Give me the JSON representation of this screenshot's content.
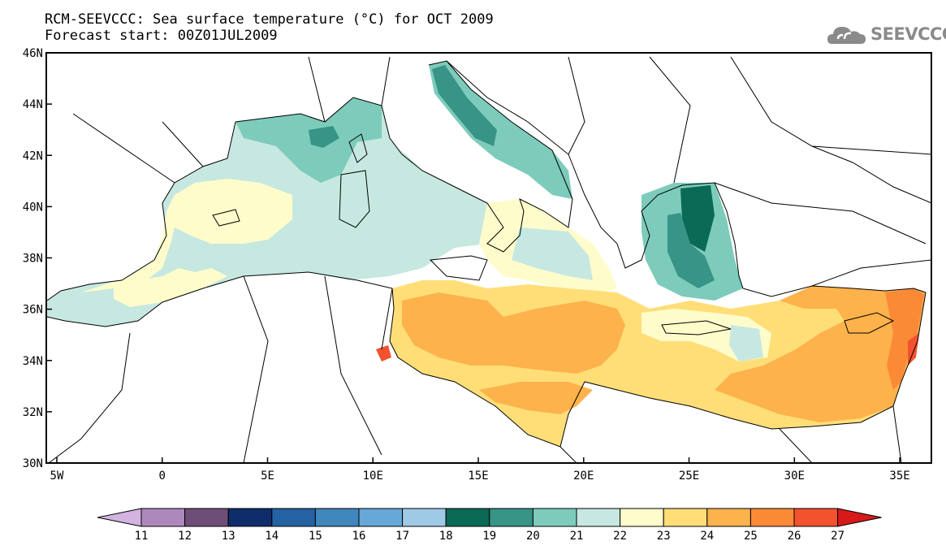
{
  "title_line1": "RCM-SEEVCCC: Sea surface temperature (°C) for OCT 2009",
  "title_line2": "Forecast start: 00Z01JUL2009",
  "logo_text": "SEEVCCC",
  "map": {
    "lat_ticks": [
      "46N",
      "44N",
      "42N",
      "40N",
      "38N",
      "36N",
      "34N",
      "32N",
      "30N"
    ],
    "lon_ticks": [
      "5W",
      "0",
      "5E",
      "10E",
      "15E",
      "20E",
      "25E",
      "30E",
      "35E"
    ],
    "lon_range": [
      -5.5,
      36.5
    ],
    "lat_range": [
      30,
      46
    ]
  },
  "colorbar": {
    "labels": [
      "11",
      "12",
      "13",
      "14",
      "15",
      "16",
      "17",
      "18",
      "19",
      "20",
      "21",
      "22",
      "23",
      "24",
      "25",
      "26",
      "27"
    ],
    "colors": [
      "#d3b3df",
      "#ad88bd",
      "#6e4e76",
      "#0e2d6a",
      "#2462a2",
      "#3f87bd",
      "#66a8d7",
      "#9ecae6",
      "#0a6a56",
      "#379486",
      "#7dcbbb",
      "#c6e8e1",
      "#fffccb",
      "#ffde78",
      "#fdb24b",
      "#fb8a37",
      "#f4512e",
      "#d8191a"
    ]
  }
}
